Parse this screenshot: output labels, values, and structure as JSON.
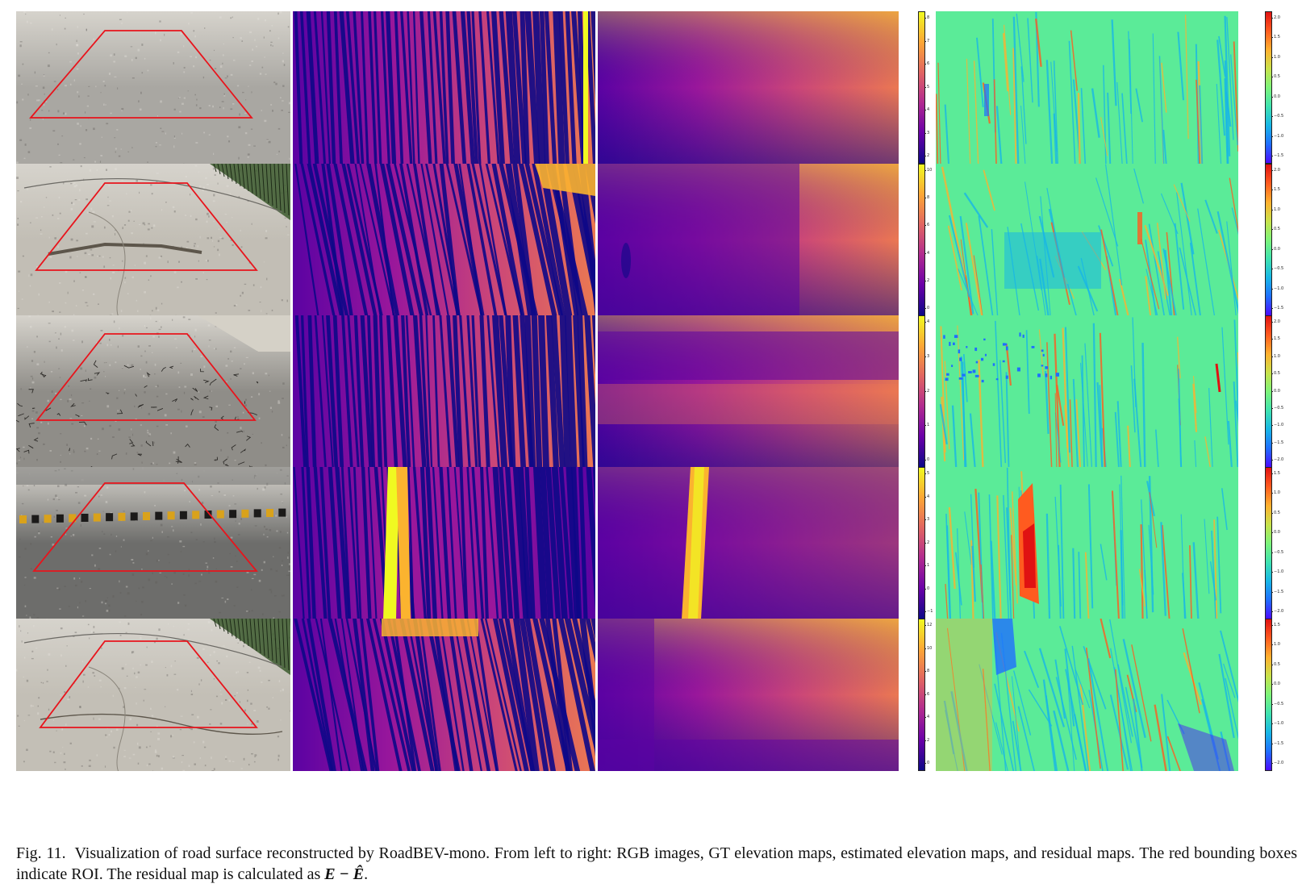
{
  "figure": {
    "columns": [
      {
        "key": "rgb",
        "colormap": "photo"
      },
      {
        "key": "gt",
        "colormap": "plasma"
      },
      {
        "key": "est",
        "colormap": "plasma"
      },
      {
        "key": "residual",
        "colormap": "rainbow"
      }
    ],
    "rows": [
      {
        "id": 1,
        "scene": "plain-asphalt",
        "height_colorbar_ticks": [
          "8",
          "7",
          "6",
          "5",
          "4",
          "3",
          "2"
        ],
        "residual_colorbar_ticks": [
          "2.0",
          "1.5",
          "1.0",
          "0.5",
          "0.0",
          "−0.5",
          "−1.0",
          "−1.5"
        ]
      },
      {
        "id": 2,
        "scene": "cracked-concrete",
        "height_colorbar_ticks": [
          "10",
          "8",
          "6",
          "4",
          "2",
          "0"
        ],
        "residual_colorbar_ticks": [
          "2.0",
          "1.5",
          "1.0",
          "0.5",
          "0.0",
          "−0.5",
          "−1.0",
          "−1.5"
        ]
      },
      {
        "id": 3,
        "scene": "alligator-cracked-asphalt",
        "height_colorbar_ticks": [
          "4",
          "3",
          "2",
          "1",
          "0"
        ],
        "residual_colorbar_ticks": [
          "2.0",
          "1.5",
          "1.0",
          "0.5",
          "0.0",
          "−0.5",
          "−1.0",
          "−1.5",
          "−2.0"
        ]
      },
      {
        "id": 4,
        "scene": "speed-bump",
        "height_colorbar_ticks": [
          "5",
          "4",
          "3",
          "2",
          "1",
          "0",
          "−1"
        ],
        "residual_colorbar_ticks": [
          "1.5",
          "1.0",
          "0.5",
          "0.0",
          "−0.5",
          "−1.0",
          "−1.5",
          "−2.0"
        ]
      },
      {
        "id": 5,
        "scene": "cracked-concrete-2",
        "height_colorbar_ticks": [
          "12",
          "10",
          "8",
          "6",
          "4",
          "2",
          "0"
        ],
        "residual_colorbar_ticks": [
          "1.5",
          "1.0",
          "0.5",
          "0.0",
          "−0.5",
          "−1.0",
          "−1.5",
          "−2.0"
        ]
      }
    ],
    "colors": {
      "roi_box": "#e8141c",
      "plasma": [
        "#0d0887",
        "#5b02a3",
        "#9a179b",
        "#cb4678",
        "#eb7852",
        "#fbb32f",
        "#f0f921"
      ],
      "rainbow": [
        "#4b0aff",
        "#1f6fff",
        "#18b7e6",
        "#3fe3b0",
        "#7df47a",
        "#c9e24a",
        "#ffb02e",
        "#ff5b1f",
        "#e01212"
      ]
    }
  },
  "caption": {
    "prefix": "Fig. 11.",
    "text": "Visualization of road surface reconstructed by RoadBEV-mono. From left to right: RGB images, GT elevation maps, estimated elevation maps, and residual maps. The red bounding boxes indicate ROI. The residual map is calculated as ",
    "formula": "E − Ê",
    "suffix": "."
  }
}
